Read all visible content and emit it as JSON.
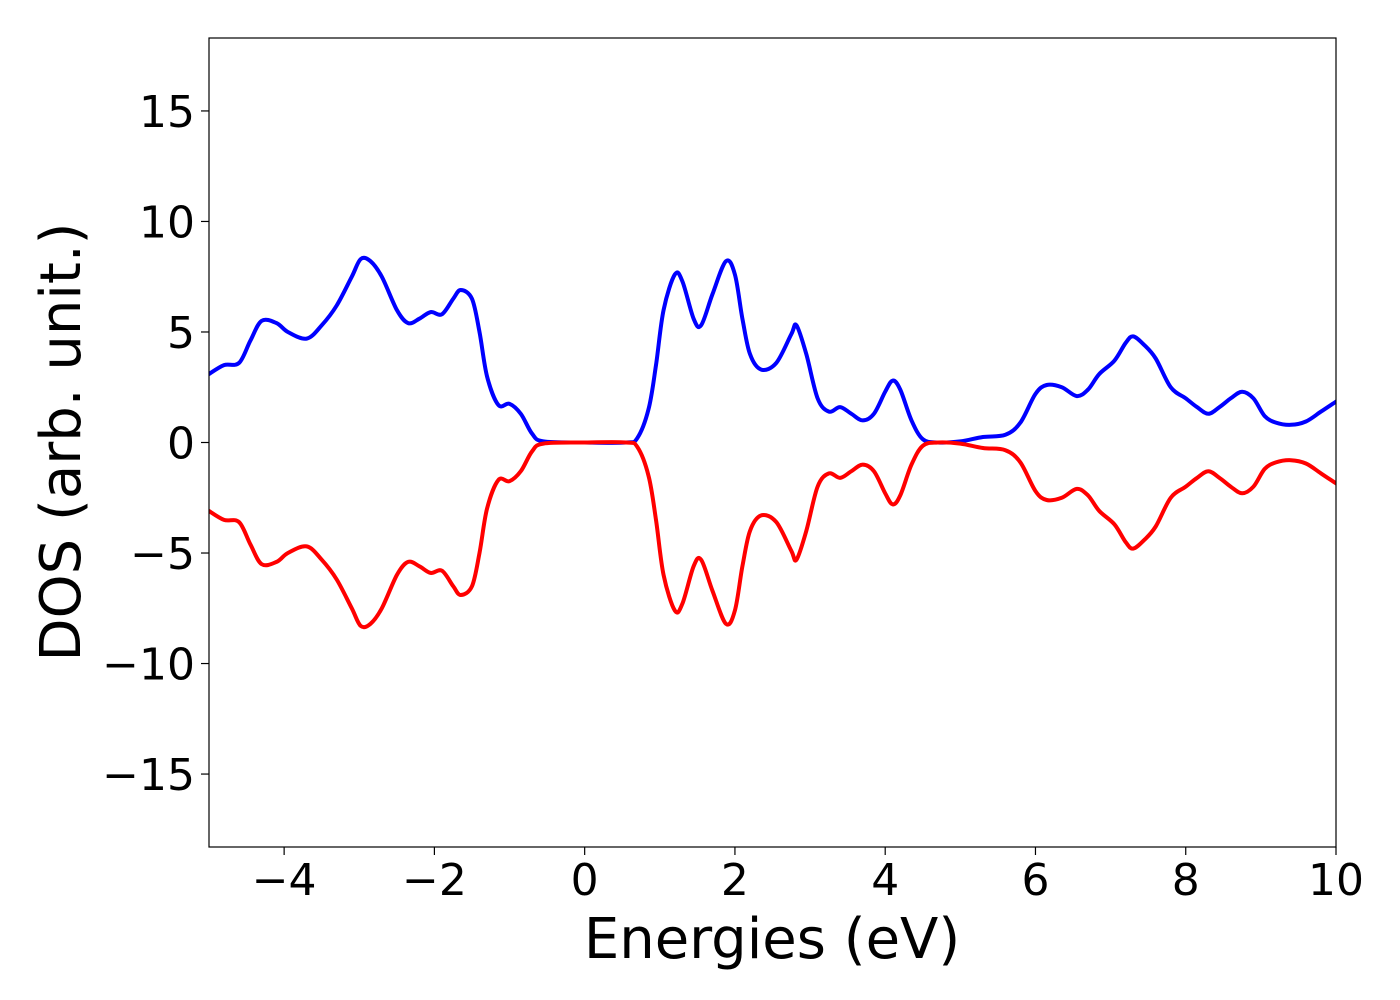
{
  "chart_data": {
    "type": "line",
    "title": "",
    "xlabel": "Energies (eV)",
    "ylabel": "DOS (arb. unit.)",
    "xlim": [
      -5,
      10
    ],
    "ylim": [
      -18.3,
      18.3
    ],
    "xticks": [
      -4,
      -2,
      0,
      2,
      4,
      6,
      8,
      10
    ],
    "xtick_labels": [
      "−4",
      "−2",
      "0",
      "2",
      "4",
      "6",
      "8",
      "10"
    ],
    "yticks": [
      15,
      10,
      5,
      0,
      -5,
      -10,
      -15
    ],
    "ytick_labels": [
      "15",
      "10",
      "5",
      "0",
      "−5",
      "−10",
      "−15"
    ],
    "grid": false,
    "legend": "none",
    "series": [
      {
        "color": "#0000ff",
        "points": [
          [
            -5.0,
            3.1
          ],
          [
            -4.8,
            3.5
          ],
          [
            -4.6,
            3.6
          ],
          [
            -4.45,
            4.6
          ],
          [
            -4.3,
            5.5
          ],
          [
            -4.1,
            5.4
          ],
          [
            -3.95,
            5.0
          ],
          [
            -3.7,
            4.7
          ],
          [
            -3.5,
            5.3
          ],
          [
            -3.3,
            6.2
          ],
          [
            -3.1,
            7.5
          ],
          [
            -2.98,
            8.3
          ],
          [
            -2.85,
            8.2
          ],
          [
            -2.7,
            7.5
          ],
          [
            -2.5,
            6.0
          ],
          [
            -2.35,
            5.4
          ],
          [
            -2.2,
            5.6
          ],
          [
            -2.05,
            5.9
          ],
          [
            -1.9,
            5.8
          ],
          [
            -1.75,
            6.5
          ],
          [
            -1.65,
            6.9
          ],
          [
            -1.5,
            6.5
          ],
          [
            -1.4,
            5.0
          ],
          [
            -1.3,
            3.0
          ],
          [
            -1.15,
            1.7
          ],
          [
            -1.0,
            1.75
          ],
          [
            -0.85,
            1.3
          ],
          [
            -0.7,
            0.4
          ],
          [
            -0.55,
            0.05
          ],
          [
            0.0,
            0.0
          ],
          [
            0.55,
            0.0
          ],
          [
            0.7,
            0.2
          ],
          [
            0.85,
            1.5
          ],
          [
            0.95,
            3.5
          ],
          [
            1.05,
            6.0
          ],
          [
            1.2,
            7.6
          ],
          [
            1.3,
            7.3
          ],
          [
            1.45,
            5.6
          ],
          [
            1.55,
            5.3
          ],
          [
            1.7,
            6.7
          ],
          [
            1.88,
            8.2
          ],
          [
            2.0,
            7.6
          ],
          [
            2.1,
            5.6
          ],
          [
            2.2,
            4.0
          ],
          [
            2.35,
            3.3
          ],
          [
            2.55,
            3.6
          ],
          [
            2.75,
            4.9
          ],
          [
            2.82,
            5.3
          ],
          [
            2.95,
            4.0
          ],
          [
            3.1,
            2.0
          ],
          [
            3.25,
            1.4
          ],
          [
            3.4,
            1.6
          ],
          [
            3.55,
            1.3
          ],
          [
            3.7,
            1.0
          ],
          [
            3.85,
            1.3
          ],
          [
            4.0,
            2.3
          ],
          [
            4.1,
            2.8
          ],
          [
            4.2,
            2.4
          ],
          [
            4.35,
            1.0
          ],
          [
            4.5,
            0.15
          ],
          [
            4.7,
            0.0
          ],
          [
            5.0,
            0.05
          ],
          [
            5.3,
            0.25
          ],
          [
            5.6,
            0.35
          ],
          [
            5.8,
            0.9
          ],
          [
            6.0,
            2.2
          ],
          [
            6.15,
            2.6
          ],
          [
            6.35,
            2.5
          ],
          [
            6.55,
            2.1
          ],
          [
            6.7,
            2.4
          ],
          [
            6.85,
            3.1
          ],
          [
            7.05,
            3.7
          ],
          [
            7.2,
            4.5
          ],
          [
            7.3,
            4.8
          ],
          [
            7.45,
            4.4
          ],
          [
            7.6,
            3.8
          ],
          [
            7.8,
            2.5
          ],
          [
            8.0,
            2.0
          ],
          [
            8.15,
            1.6
          ],
          [
            8.3,
            1.3
          ],
          [
            8.45,
            1.6
          ],
          [
            8.6,
            2.0
          ],
          [
            8.75,
            2.3
          ],
          [
            8.9,
            2.0
          ],
          [
            9.05,
            1.2
          ],
          [
            9.2,
            0.9
          ],
          [
            9.4,
            0.8
          ],
          [
            9.6,
            0.95
          ],
          [
            9.8,
            1.4
          ],
          [
            10.0,
            1.85
          ]
        ]
      },
      {
        "color": "#ff0000",
        "points": [
          [
            -5.0,
            -3.1
          ],
          [
            -4.8,
            -3.5
          ],
          [
            -4.6,
            -3.6
          ],
          [
            -4.45,
            -4.6
          ],
          [
            -4.3,
            -5.5
          ],
          [
            -4.1,
            -5.4
          ],
          [
            -3.95,
            -5.0
          ],
          [
            -3.7,
            -4.7
          ],
          [
            -3.5,
            -5.3
          ],
          [
            -3.3,
            -6.2
          ],
          [
            -3.1,
            -7.5
          ],
          [
            -2.98,
            -8.3
          ],
          [
            -2.85,
            -8.2
          ],
          [
            -2.7,
            -7.5
          ],
          [
            -2.5,
            -6.0
          ],
          [
            -2.35,
            -5.4
          ],
          [
            -2.2,
            -5.6
          ],
          [
            -2.05,
            -5.9
          ],
          [
            -1.9,
            -5.8
          ],
          [
            -1.75,
            -6.5
          ],
          [
            -1.65,
            -6.9
          ],
          [
            -1.5,
            -6.5
          ],
          [
            -1.4,
            -5.0
          ],
          [
            -1.3,
            -3.0
          ],
          [
            -1.15,
            -1.7
          ],
          [
            -1.0,
            -1.75
          ],
          [
            -0.85,
            -1.3
          ],
          [
            -0.7,
            -0.4
          ],
          [
            -0.55,
            -0.05
          ],
          [
            0.0,
            0.0
          ],
          [
            0.55,
            0.0
          ],
          [
            0.7,
            -0.2
          ],
          [
            0.85,
            -1.5
          ],
          [
            0.95,
            -3.5
          ],
          [
            1.05,
            -6.0
          ],
          [
            1.2,
            -7.6
          ],
          [
            1.3,
            -7.3
          ],
          [
            1.45,
            -5.6
          ],
          [
            1.55,
            -5.3
          ],
          [
            1.7,
            -6.7
          ],
          [
            1.88,
            -8.2
          ],
          [
            2.0,
            -7.6
          ],
          [
            2.1,
            -5.6
          ],
          [
            2.2,
            -4.0
          ],
          [
            2.35,
            -3.3
          ],
          [
            2.55,
            -3.6
          ],
          [
            2.75,
            -4.9
          ],
          [
            2.82,
            -5.3
          ],
          [
            2.95,
            -4.0
          ],
          [
            3.1,
            -2.0
          ],
          [
            3.25,
            -1.4
          ],
          [
            3.4,
            -1.6
          ],
          [
            3.55,
            -1.3
          ],
          [
            3.7,
            -1.0
          ],
          [
            3.85,
            -1.3
          ],
          [
            4.0,
            -2.3
          ],
          [
            4.1,
            -2.8
          ],
          [
            4.2,
            -2.4
          ],
          [
            4.35,
            -1.0
          ],
          [
            4.5,
            -0.15
          ],
          [
            4.7,
            0.0
          ],
          [
            5.0,
            -0.05
          ],
          [
            5.3,
            -0.25
          ],
          [
            5.6,
            -0.35
          ],
          [
            5.8,
            -0.9
          ],
          [
            6.0,
            -2.2
          ],
          [
            6.15,
            -2.6
          ],
          [
            6.35,
            -2.5
          ],
          [
            6.55,
            -2.1
          ],
          [
            6.7,
            -2.4
          ],
          [
            6.85,
            -3.1
          ],
          [
            7.05,
            -3.7
          ],
          [
            7.2,
            -4.5
          ],
          [
            7.3,
            -4.8
          ],
          [
            7.45,
            -4.4
          ],
          [
            7.6,
            -3.8
          ],
          [
            7.8,
            -2.5
          ],
          [
            8.0,
            -2.0
          ],
          [
            8.15,
            -1.6
          ],
          [
            8.3,
            -1.3
          ],
          [
            8.45,
            -1.6
          ],
          [
            8.6,
            -2.0
          ],
          [
            8.75,
            -2.3
          ],
          [
            8.9,
            -2.0
          ],
          [
            9.05,
            -1.2
          ],
          [
            9.2,
            -0.9
          ],
          [
            9.4,
            -0.8
          ],
          [
            9.6,
            -0.95
          ],
          [
            9.8,
            -1.4
          ],
          [
            10.0,
            -1.85
          ]
        ]
      }
    ]
  }
}
